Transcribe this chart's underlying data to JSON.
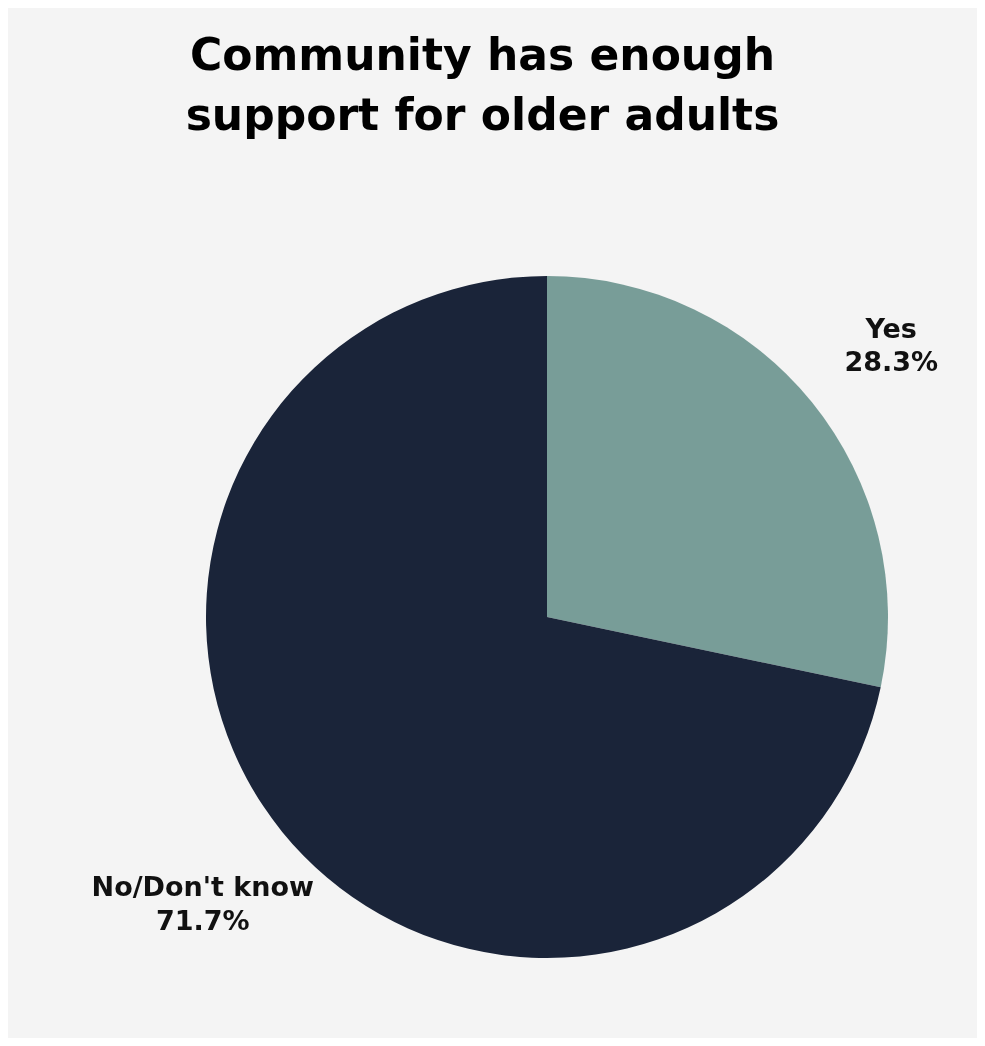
{
  "chart_data": {
    "type": "pie",
    "title": "Community has enough support for older adults",
    "categories": [
      "Yes",
      "No/Don't know"
    ],
    "values": [
      28.3,
      71.7
    ],
    "colors": [
      "#789d98",
      "#1a2439"
    ],
    "value_labels": [
      "28.3%",
      "71.7%"
    ]
  }
}
